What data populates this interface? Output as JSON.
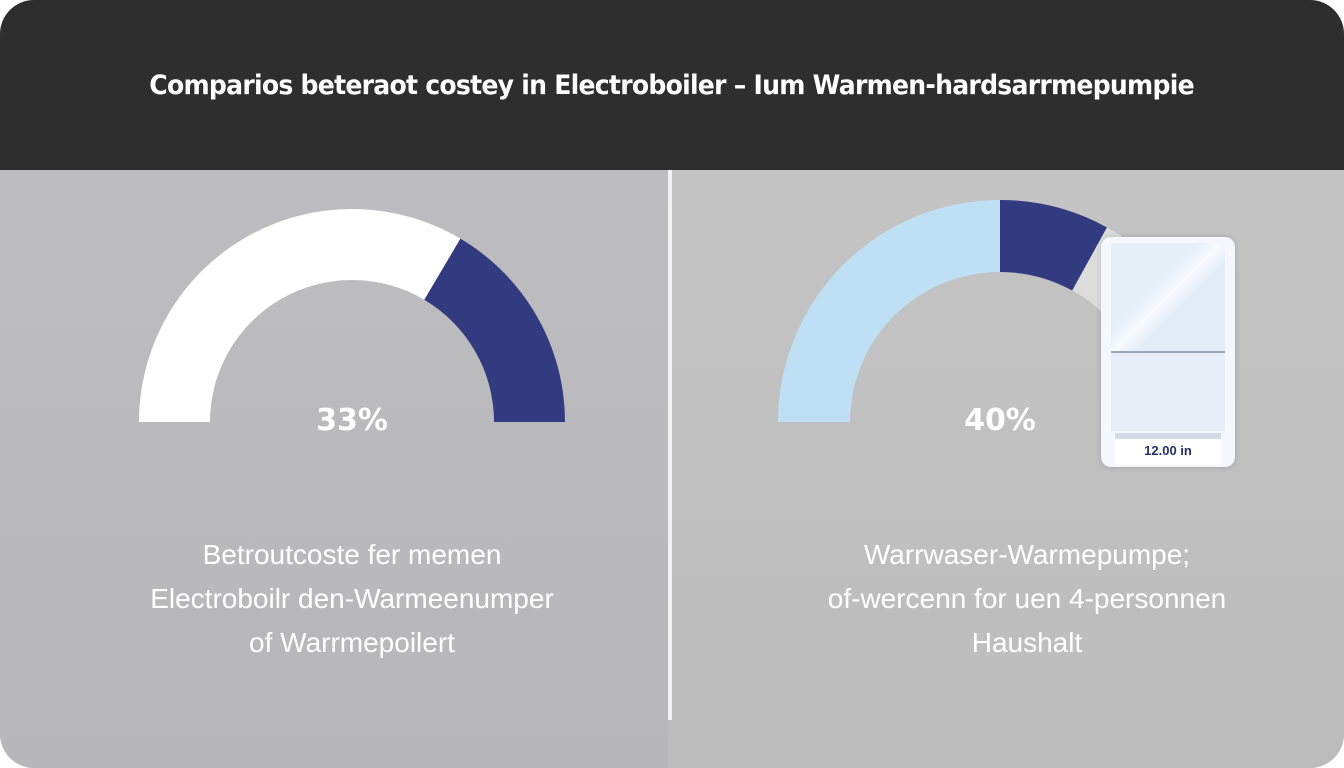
{
  "title": "Comparios beteraot costey in Electroboiler – Ium Warmen-hardsarrmepumpie",
  "colors": {
    "header": "#2f2e2f",
    "navy": "#323a80",
    "white": "#ffffff",
    "light_blue": "#bfe0f4",
    "light_gray": "#dcdcdc"
  },
  "chart_data": [
    {
      "type": "gauge",
      "center_label": "33%",
      "value": 33,
      "range": [
        0,
        100
      ],
      "segments": [
        {
          "color": "#ffffff",
          "from": 0,
          "to": 67
        },
        {
          "color": "#323a80",
          "from": 67,
          "to": 100
        }
      ],
      "caption": [
        "Betroutcoste fer memen",
        "Electroboilr den-Warmeenumper",
        "of Warrmepoilert"
      ]
    },
    {
      "type": "gauge",
      "center_label": "40%",
      "value": 40,
      "range": [
        0,
        100
      ],
      "segments": [
        {
          "color": "#bfe0f4",
          "from": 0,
          "to": 50
        },
        {
          "color": "#323a80",
          "from": 50,
          "to": 66
        },
        {
          "color": "#dcdcdc",
          "from": 66,
          "to": 100
        }
      ],
      "caption": [
        "Warrwaser-Warmepumpe;",
        "of-wercenn for uen 4-personnen",
        "Haushalt"
      ]
    }
  ],
  "device": {
    "display": "12.00 in",
    "icon": "water-heater-icon"
  }
}
